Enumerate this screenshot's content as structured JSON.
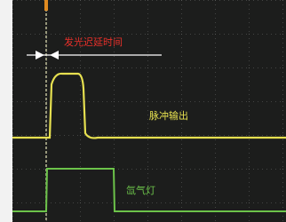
{
  "annotations": {
    "delay_label": "发光迟延时间",
    "pulse_label": "脉冲输出",
    "lamp_label": "氙气灯"
  }
}
